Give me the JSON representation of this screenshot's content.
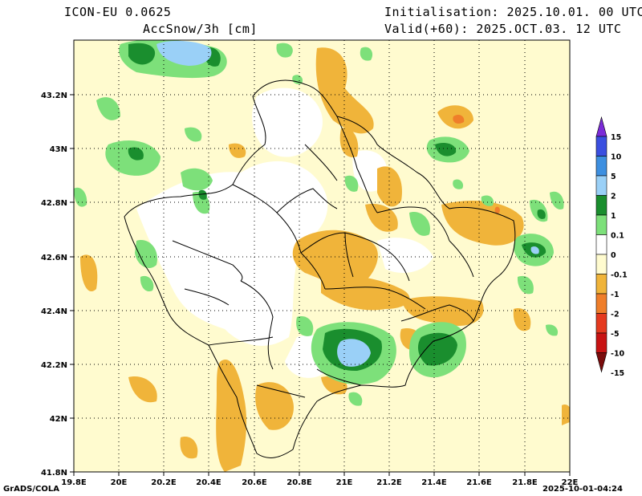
{
  "header": {
    "model": "ICON-EU 0.0625",
    "variable": "AccSnow/3h [cm]",
    "init": "Initialisation: 2025.10.01. 00 UTC",
    "valid": "Valid(+60): 2025.OCT.03. 12 UTC"
  },
  "axes": {
    "lon_labels": [
      "19.8E",
      "20E",
      "20.2E",
      "20.4E",
      "20.6E",
      "20.8E",
      "21E",
      "21.2E",
      "21.4E",
      "21.6E",
      "21.8E",
      "22E"
    ],
    "lat_labels": [
      "41.8N",
      "42N",
      "42.2N",
      "42.4N",
      "42.6N",
      "42.8N",
      "43N",
      "43.2N"
    ]
  },
  "colorbar": {
    "labels": [
      "15",
      "10",
      "5",
      "2",
      "1",
      "0.1",
      "0",
      "-0.1",
      "-1",
      "-2",
      "-5",
      "-10",
      "-15"
    ],
    "colors": [
      "#7b2bd8",
      "#3a4fe0",
      "#3d8fe0",
      "#9ad0f7",
      "#1a8e2e",
      "#7de07a",
      "#ffffff",
      "#fffbcf",
      "#f0b43a",
      "#ef7e2a",
      "#e53a1f",
      "#c81313",
      "#7a0c0c"
    ]
  },
  "footer": {
    "left": "GrADS/COLA",
    "right": "2025-10-01-04:24"
  }
}
